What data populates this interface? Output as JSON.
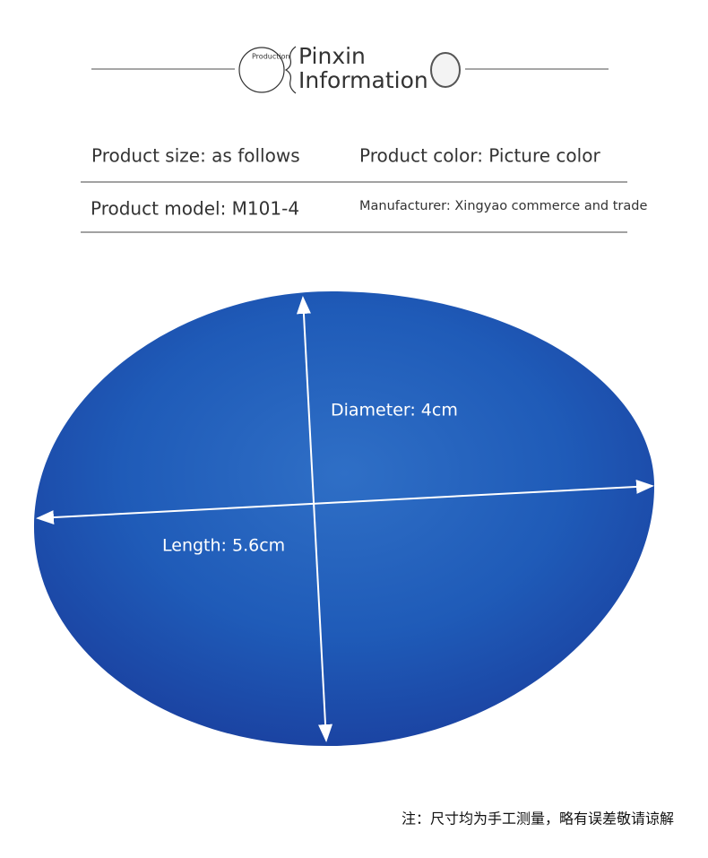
{
  "header": {
    "small_label": "Production",
    "title_line1": "Pinxin",
    "title_line2": "Information"
  },
  "table": {
    "rows": [
      [
        "Product size: as follows",
        "Product color: Picture color"
      ],
      [
        "Product model: M101-4",
        "Manufacturer: Xingyao commerce and trade"
      ]
    ]
  },
  "image": {
    "annotations": {
      "diameter": "Diameter: 4cm",
      "length": "Length: 5.6cm"
    }
  },
  "footnote": "注：尺寸均为手工测量，略有误差敬请谅解"
}
